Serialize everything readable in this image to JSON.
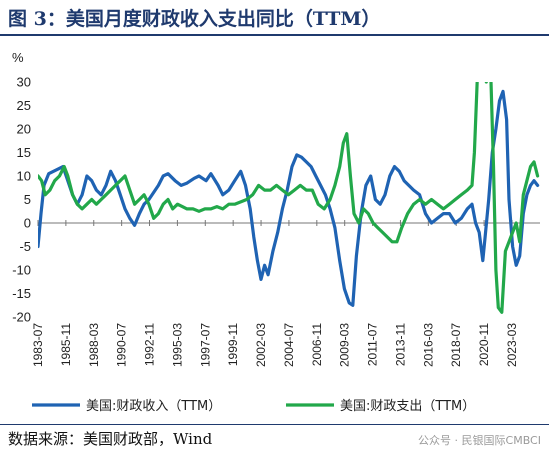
{
  "header": {
    "title": "图 3：美国月度财政收入支出同比（TTM）"
  },
  "footer": {
    "source": "数据来源：美国财政部，Wind",
    "watermark": "公众号 · 民银国际CMBCI"
  },
  "colors": {
    "series_1": "#1f63b3",
    "series_2": "#22a84a",
    "title": "#1f3a6e"
  },
  "chart_data": {
    "type": "line",
    "ylabel": "%",
    "ylim": [
      -20,
      30
    ],
    "yticks": [
      -20,
      -15,
      -10,
      -5,
      0,
      5,
      10,
      15,
      20,
      25,
      30
    ],
    "xlim": [
      1983.5,
      2025.6
    ],
    "xtick_labels": [
      "1983-07",
      "1985-11",
      "1988-03",
      "1990-07",
      "1992-11",
      "1995-03",
      "1997-07",
      "1999-11",
      "2002-03",
      "2004-07",
      "2006-11",
      "2009-03",
      "2011-07",
      "2013-11",
      "2016-03",
      "2018-07",
      "2020-11",
      "2023-03"
    ],
    "legend_position": "bottom",
    "grid": false,
    "series": [
      {
        "name": "美国:财政收入（TTM）",
        "color": "#1f63b3",
        "points": [
          [
            1983.5,
            -5
          ],
          [
            1983.75,
            2
          ],
          [
            1984.0,
            8
          ],
          [
            1984.4,
            10.5
          ],
          [
            1984.8,
            11
          ],
          [
            1985.2,
            11.5
          ],
          [
            1985.6,
            12
          ],
          [
            1986.0,
            9
          ],
          [
            1986.4,
            6
          ],
          [
            1986.8,
            4
          ],
          [
            1987.2,
            6
          ],
          [
            1987.6,
            10
          ],
          [
            1988.0,
            9
          ],
          [
            1988.4,
            7
          ],
          [
            1988.8,
            6
          ],
          [
            1989.2,
            8
          ],
          [
            1989.6,
            11
          ],
          [
            1990.0,
            9
          ],
          [
            1990.4,
            6
          ],
          [
            1990.8,
            3
          ],
          [
            1991.2,
            1
          ],
          [
            1991.6,
            -0.5
          ],
          [
            1992.0,
            2
          ],
          [
            1992.4,
            4
          ],
          [
            1992.8,
            5
          ],
          [
            1993.2,
            6.5
          ],
          [
            1993.6,
            8
          ],
          [
            1994.0,
            10
          ],
          [
            1994.4,
            10.5
          ],
          [
            1995.0,
            9
          ],
          [
            1995.5,
            8
          ],
          [
            1996.0,
            8.5
          ],
          [
            1996.6,
            9.5
          ],
          [
            1997.0,
            10
          ],
          [
            1997.6,
            9
          ],
          [
            1998.0,
            10.5
          ],
          [
            1998.6,
            8
          ],
          [
            1999.0,
            6
          ],
          [
            1999.5,
            7
          ],
          [
            2000.0,
            9
          ],
          [
            2000.5,
            11
          ],
          [
            2000.9,
            8
          ],
          [
            2001.3,
            3
          ],
          [
            2001.6,
            -3
          ],
          [
            2001.9,
            -8
          ],
          [
            2002.2,
            -12
          ],
          [
            2002.5,
            -9
          ],
          [
            2002.8,
            -11
          ],
          [
            2003.2,
            -6
          ],
          [
            2003.6,
            -2
          ],
          [
            2004.0,
            3
          ],
          [
            2004.4,
            7
          ],
          [
            2004.8,
            12
          ],
          [
            2005.2,
            14.5
          ],
          [
            2005.6,
            14
          ],
          [
            2006.0,
            13
          ],
          [
            2006.4,
            12
          ],
          [
            2006.8,
            10
          ],
          [
            2007.2,
            8
          ],
          [
            2007.6,
            6
          ],
          [
            2008.0,
            3
          ],
          [
            2008.4,
            -1
          ],
          [
            2008.8,
            -8
          ],
          [
            2009.2,
            -14
          ],
          [
            2009.6,
            -17
          ],
          [
            2009.9,
            -17.5
          ],
          [
            2010.2,
            -7
          ],
          [
            2010.6,
            2
          ],
          [
            2011.0,
            8
          ],
          [
            2011.4,
            10
          ],
          [
            2011.8,
            5
          ],
          [
            2012.2,
            4
          ],
          [
            2012.6,
            6
          ],
          [
            2013.0,
            10
          ],
          [
            2013.4,
            12
          ],
          [
            2013.8,
            11
          ],
          [
            2014.2,
            9
          ],
          [
            2014.6,
            8
          ],
          [
            2015.0,
            7
          ],
          [
            2015.5,
            6
          ],
          [
            2016.0,
            2
          ],
          [
            2016.5,
            0
          ],
          [
            2017.0,
            1
          ],
          [
            2017.5,
            2
          ],
          [
            2018.0,
            2
          ],
          [
            2018.5,
            0
          ],
          [
            2019.0,
            1
          ],
          [
            2019.5,
            3
          ],
          [
            2019.9,
            4
          ],
          [
            2020.2,
            0
          ],
          [
            2020.5,
            -2
          ],
          [
            2020.8,
            -8
          ],
          [
            2021.0,
            -3
          ],
          [
            2021.3,
            5
          ],
          [
            2021.6,
            15
          ],
          [
            2021.9,
            20
          ],
          [
            2022.2,
            26
          ],
          [
            2022.5,
            28
          ],
          [
            2022.8,
            22
          ],
          [
            2023.0,
            5
          ],
          [
            2023.3,
            -5
          ],
          [
            2023.6,
            -9
          ],
          [
            2023.9,
            -7
          ],
          [
            2024.2,
            2
          ],
          [
            2024.5,
            6
          ],
          [
            2024.8,
            8
          ],
          [
            2025.1,
            9
          ],
          [
            2025.4,
            8
          ]
        ]
      },
      {
        "name": "美国:财政支出（TTM）",
        "color": "#22a84a",
        "points": [
          [
            1983.5,
            10
          ],
          [
            1983.8,
            9
          ],
          [
            1984.1,
            6
          ],
          [
            1984.5,
            7
          ],
          [
            1984.9,
            9
          ],
          [
            1985.3,
            10
          ],
          [
            1985.7,
            12
          ],
          [
            1986.0,
            10
          ],
          [
            1986.4,
            6
          ],
          [
            1986.8,
            4
          ],
          [
            1987.2,
            3
          ],
          [
            1987.6,
            4
          ],
          [
            1988.0,
            5
          ],
          [
            1988.4,
            4
          ],
          [
            1988.8,
            5
          ],
          [
            1989.2,
            6
          ],
          [
            1989.6,
            7
          ],
          [
            1990.0,
            8
          ],
          [
            1990.4,
            9
          ],
          [
            1990.8,
            10
          ],
          [
            1991.2,
            7
          ],
          [
            1991.6,
            4
          ],
          [
            1992.0,
            5
          ],
          [
            1992.4,
            6
          ],
          [
            1992.8,
            4
          ],
          [
            1993.2,
            1
          ],
          [
            1993.6,
            2
          ],
          [
            1994.0,
            4
          ],
          [
            1994.4,
            5
          ],
          [
            1994.8,
            3
          ],
          [
            1995.2,
            4
          ],
          [
            1995.6,
            3.5
          ],
          [
            1996.0,
            3
          ],
          [
            1996.5,
            3
          ],
          [
            1997.0,
            2.5
          ],
          [
            1997.5,
            3
          ],
          [
            1998.0,
            3
          ],
          [
            1998.5,
            3.5
          ],
          [
            1999.0,
            3
          ],
          [
            1999.5,
            4
          ],
          [
            2000.0,
            4
          ],
          [
            2000.5,
            4.5
          ],
          [
            2001.0,
            5
          ],
          [
            2001.5,
            6
          ],
          [
            2002.0,
            8
          ],
          [
            2002.5,
            7
          ],
          [
            2003.0,
            7
          ],
          [
            2003.5,
            8
          ],
          [
            2004.0,
            7
          ],
          [
            2004.5,
            6
          ],
          [
            2005.0,
            7
          ],
          [
            2005.5,
            8
          ],
          [
            2006.0,
            7
          ],
          [
            2006.5,
            7
          ],
          [
            2007.0,
            4
          ],
          [
            2007.5,
            3
          ],
          [
            2008.0,
            5
          ],
          [
            2008.4,
            8
          ],
          [
            2008.8,
            12
          ],
          [
            2009.1,
            17
          ],
          [
            2009.4,
            19
          ],
          [
            2009.7,
            10
          ],
          [
            2010.0,
            2
          ],
          [
            2010.4,
            0
          ],
          [
            2010.8,
            3
          ],
          [
            2011.2,
            2
          ],
          [
            2011.6,
            0
          ],
          [
            2012.0,
            -1
          ],
          [
            2012.4,
            -2
          ],
          [
            2012.8,
            -3
          ],
          [
            2013.2,
            -4
          ],
          [
            2013.6,
            -4
          ],
          [
            2014.0,
            -1
          ],
          [
            2014.5,
            2
          ],
          [
            2015.0,
            4
          ],
          [
            2015.5,
            5
          ],
          [
            2016.0,
            4
          ],
          [
            2016.5,
            5
          ],
          [
            2017.0,
            4
          ],
          [
            2017.5,
            3
          ],
          [
            2018.0,
            4
          ],
          [
            2018.5,
            5
          ],
          [
            2019.0,
            6
          ],
          [
            2019.5,
            7
          ],
          [
            2019.9,
            8
          ],
          [
            2020.1,
            15
          ],
          [
            2020.3,
            28
          ],
          [
            2020.6,
            48
          ],
          [
            2020.9,
            48
          ],
          [
            2021.1,
            30
          ],
          [
            2021.4,
            38
          ],
          [
            2021.7,
            12
          ],
          [
            2021.9,
            -10
          ],
          [
            2022.1,
            -18
          ],
          [
            2022.4,
            -19
          ],
          [
            2022.7,
            -6
          ],
          [
            2023.0,
            -4
          ],
          [
            2023.3,
            -2
          ],
          [
            2023.6,
            0
          ],
          [
            2023.9,
            -4
          ],
          [
            2024.2,
            6
          ],
          [
            2024.5,
            9
          ],
          [
            2024.8,
            12
          ],
          [
            2025.1,
            13
          ],
          [
            2025.4,
            10
          ]
        ]
      }
    ]
  }
}
